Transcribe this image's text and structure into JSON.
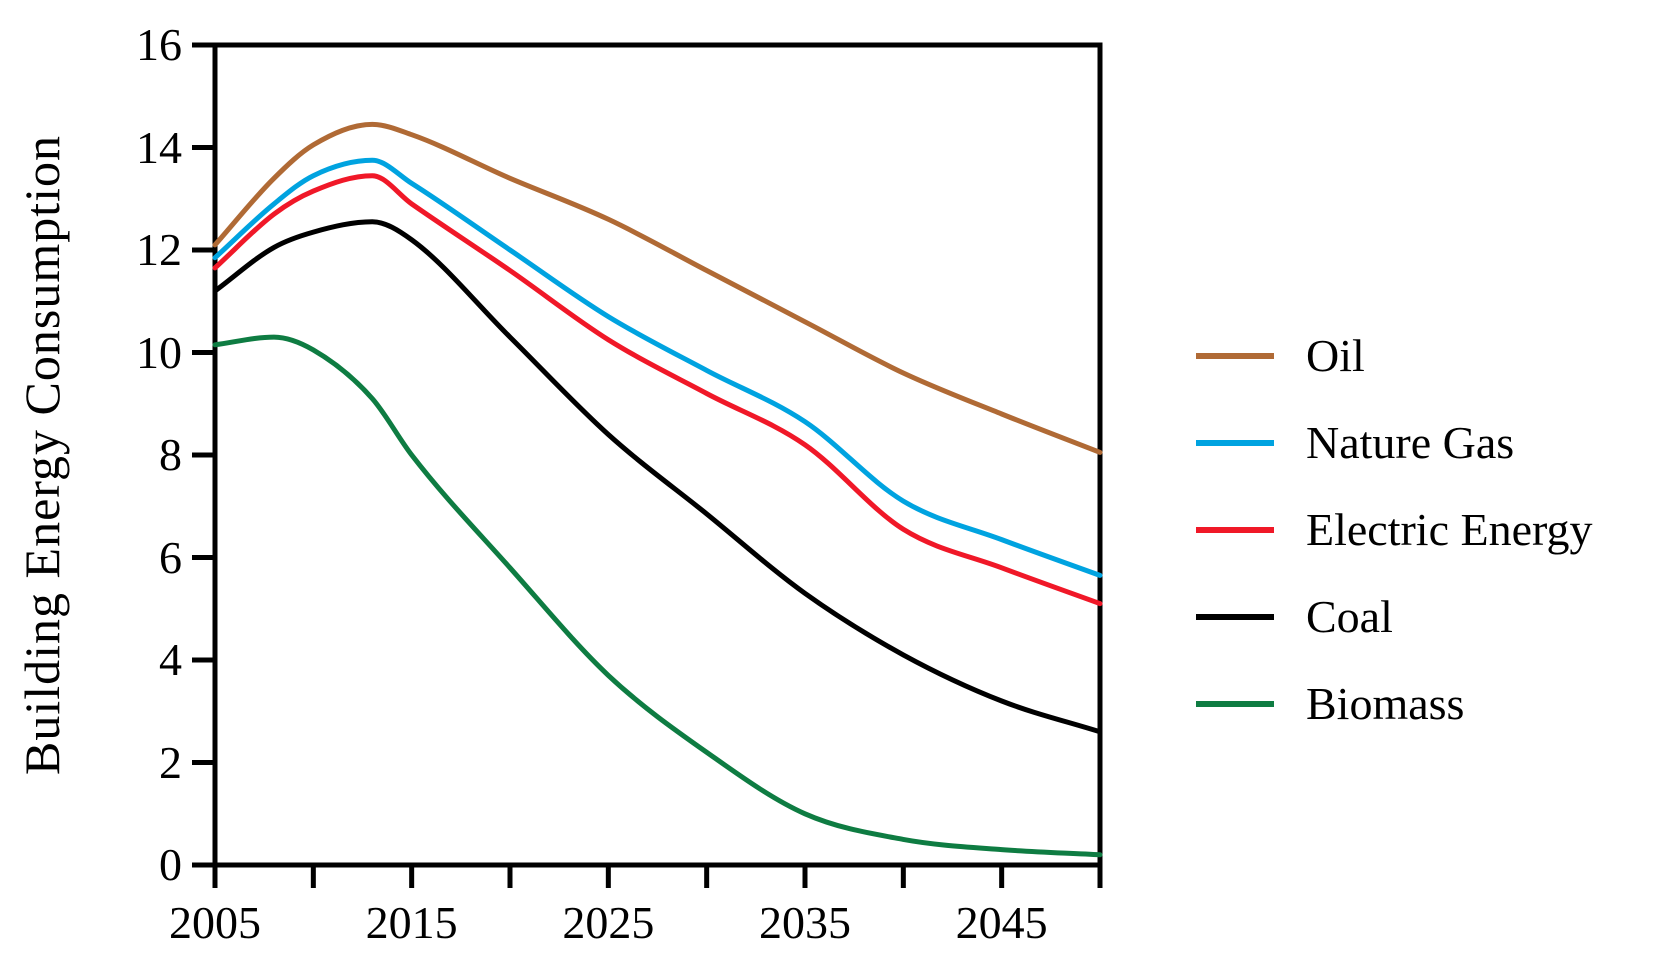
{
  "chart_data": {
    "type": "line",
    "title": "",
    "xlabel": "",
    "ylabel": "Building Energy Consumption",
    "xlim": [
      2005,
      2050
    ],
    "ylim": [
      0,
      16
    ],
    "x_tick_step": 5,
    "x_major_tick_labels": [
      "2005",
      "2015",
      "2025",
      "2035",
      "2045"
    ],
    "x_major_tick_values": [
      2005,
      2015,
      2025,
      2035,
      2045
    ],
    "y_tick_labels": [
      "0",
      "2",
      "4",
      "6",
      "8",
      "10",
      "12",
      "14",
      "16"
    ],
    "y_tick_values": [
      0,
      2,
      4,
      6,
      8,
      10,
      12,
      14,
      16
    ],
    "grid": false,
    "legend_position": "right-outside",
    "x": [
      2005,
      2008,
      2010,
      2013,
      2015,
      2020,
      2025,
      2030,
      2035,
      2040,
      2045,
      2050
    ],
    "series": [
      {
        "name": "Oil",
        "color": "#B06A35",
        "values": [
          12.1,
          13.4,
          14.05,
          14.45,
          14.25,
          13.4,
          12.6,
          11.6,
          10.6,
          9.6,
          8.8,
          8.05
        ]
      },
      {
        "name": "Nature Gas",
        "color": "#00A3E0",
        "values": [
          11.85,
          12.9,
          13.45,
          13.75,
          13.3,
          12.0,
          10.7,
          9.65,
          8.65,
          7.1,
          6.35,
          5.65
        ]
      },
      {
        "name": "Electric Energy",
        "color": "#F01828",
        "values": [
          11.65,
          12.7,
          13.15,
          13.45,
          12.9,
          11.6,
          10.25,
          9.2,
          8.2,
          6.55,
          5.8,
          5.1
        ]
      },
      {
        "name": "Coal",
        "color": "#000000",
        "values": [
          11.2,
          12.05,
          12.35,
          12.55,
          12.2,
          10.3,
          8.4,
          6.85,
          5.3,
          4.1,
          3.2,
          2.6
        ]
      },
      {
        "name": "Biomass",
        "color": "#0E7C42",
        "values": [
          10.15,
          10.3,
          10.05,
          9.1,
          8.0,
          5.8,
          3.7,
          2.2,
          1.0,
          0.5,
          0.3,
          0.2
        ]
      }
    ],
    "axis_color": "#000000"
  }
}
